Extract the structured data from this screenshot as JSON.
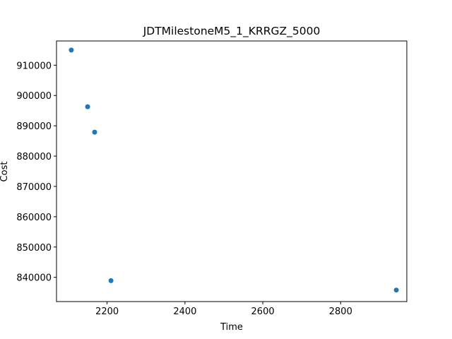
{
  "chart_data": {
    "type": "scatter",
    "title": "JDTMilestoneM5_1_KRRGZ_5000",
    "xlabel": "Time",
    "ylabel": "Cost",
    "xlim": [
      2070,
      2970
    ],
    "ylim": [
      832000,
      918000
    ],
    "xticks": [
      2200,
      2400,
      2600,
      2800
    ],
    "yticks": [
      840000,
      850000,
      860000,
      870000,
      880000,
      890000,
      900000,
      910000
    ],
    "grid": false,
    "color": "#1f77b4",
    "series": [
      {
        "x": [
          2108,
          2150,
          2168,
          2210,
          2943
        ],
        "y": [
          915000,
          896300,
          887900,
          838900,
          835800
        ]
      }
    ]
  }
}
